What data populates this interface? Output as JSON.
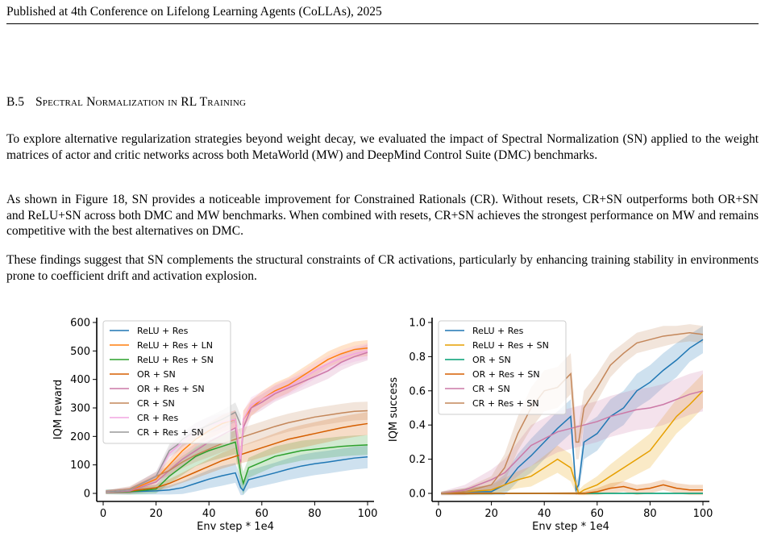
{
  "header": {
    "text": "Published at 4th Conference on Lifelong Learning Agents (CoLLAs), 2025"
  },
  "section": {
    "number": "B.5",
    "title": "Spectral Normalization in RL Training"
  },
  "paragraphs": [
    "To explore alternative regularization strategies beyond weight decay, we evaluated the impact of Spectral Normalization (SN) applied to the weight matrices of actor and critic networks across both MetaWorld (MW) and DeepMind Control Suite (DMC) benchmarks.",
    "As shown in Figure 18, SN provides a noticeable improvement for Constrained Rationals (CR). Without resets, CR+SN outperforms both OR+SN and ReLU+SN across both DMC and MW benchmarks. When combined with resets, CR+SN achieves the strongest performance on MW and remains competitive with the best alternatives on DMC.",
    "These findings suggest that SN complements the structural constraints of CR activations, particularly by enhancing training stability in environments prone to coefficient drift and activation explosion."
  ],
  "chart_data": [
    {
      "type": "line",
      "xlabel": "Env step * 1e4",
      "ylabel": "IQM reward",
      "xlim": [
        0,
        100
      ],
      "ylim": [
        0,
        600
      ],
      "xticks": [
        0,
        20,
        40,
        60,
        80,
        100
      ],
      "yticks": [
        0,
        100,
        200,
        300,
        400,
        500,
        600
      ],
      "legend_placement": "top-left",
      "grid": false,
      "series": [
        {
          "name": "ReLU + Res",
          "color": "#1f77b4",
          "x": [
            1,
            10,
            20,
            25,
            30,
            35,
            40,
            45,
            50,
            52,
            53,
            55,
            60,
            65,
            70,
            75,
            80,
            85,
            90,
            95,
            100
          ],
          "y": [
            5,
            6,
            9,
            12,
            20,
            35,
            50,
            62,
            72,
            20,
            10,
            48,
            60,
            72,
            85,
            96,
            104,
            110,
            117,
            124,
            128
          ],
          "band": [
            8,
            10,
            13,
            16,
            22,
            28,
            32,
            35,
            35,
            35,
            25,
            32,
            34,
            36,
            38,
            40,
            40,
            40,
            40,
            40,
            40
          ]
        },
        {
          "name": "ReLU + Res + LN",
          "color": "#ff7f0e",
          "x": [
            1,
            10,
            20,
            25,
            30,
            35,
            40,
            45,
            50,
            52,
            53,
            56,
            60,
            65,
            70,
            75,
            80,
            85,
            90,
            95,
            100
          ],
          "y": [
            5,
            10,
            50,
            100,
            150,
            190,
            220,
            245,
            260,
            110,
            260,
            300,
            330,
            360,
            380,
            410,
            440,
            470,
            490,
            505,
            510
          ],
          "band": [
            6,
            10,
            16,
            20,
            24,
            26,
            28,
            30,
            32,
            35,
            30,
            28,
            28,
            28,
            28,
            28,
            28,
            28,
            28,
            28,
            28
          ]
        },
        {
          "name": "ReLU + Res + SN",
          "color": "#2ca02c",
          "x": [
            1,
            10,
            20,
            25,
            30,
            35,
            40,
            45,
            50,
            52,
            53,
            55,
            60,
            65,
            70,
            75,
            80,
            85,
            90,
            95,
            100
          ],
          "y": [
            5,
            6,
            15,
            60,
            95,
            130,
            150,
            165,
            180,
            70,
            35,
            90,
            110,
            130,
            140,
            150,
            155,
            160,
            165,
            168,
            170
          ],
          "band": [
            8,
            10,
            15,
            25,
            30,
            35,
            38,
            40,
            42,
            45,
            40,
            35,
            35,
            35,
            35,
            35,
            35,
            35,
            35,
            35,
            35
          ]
        },
        {
          "name": "OR + SN",
          "color": "#d55e00",
          "x": [
            1,
            10,
            20,
            25,
            30,
            35,
            40,
            45,
            50,
            55,
            60,
            65,
            70,
            75,
            80,
            85,
            90,
            95,
            100
          ],
          "y": [
            5,
            8,
            20,
            35,
            55,
            75,
            95,
            115,
            130,
            145,
            160,
            175,
            190,
            200,
            210,
            220,
            230,
            238,
            245
          ],
          "band": [
            6,
            8,
            12,
            15,
            18,
            22,
            25,
            28,
            30,
            32,
            34,
            36,
            38,
            40,
            40,
            40,
            40,
            40,
            40
          ]
        },
        {
          "name": "OR + Res + SN",
          "color": "#cc79a7",
          "x": [
            1,
            10,
            20,
            25,
            30,
            35,
            40,
            45,
            50,
            52,
            53,
            56,
            60,
            65,
            70,
            75,
            80,
            85,
            90,
            95,
            100
          ],
          "y": [
            5,
            8,
            40,
            80,
            120,
            150,
            180,
            205,
            230,
            110,
            230,
            300,
            320,
            350,
            370,
            390,
            410,
            430,
            460,
            480,
            495
          ],
          "band": [
            6,
            10,
            16,
            20,
            24,
            26,
            28,
            30,
            32,
            35,
            30,
            28,
            28,
            28,
            28,
            28,
            28,
            28,
            28,
            28,
            28
          ]
        },
        {
          "name": "CR + SN",
          "color": "#c4875a",
          "x": [
            1,
            10,
            20,
            25,
            30,
            35,
            40,
            45,
            50,
            55,
            60,
            65,
            70,
            75,
            80,
            85,
            90,
            95,
            100
          ],
          "y": [
            5,
            15,
            60,
            80,
            110,
            135,
            155,
            175,
            190,
            205,
            220,
            235,
            248,
            258,
            268,
            275,
            282,
            288,
            290
          ],
          "band": [
            6,
            10,
            15,
            18,
            22,
            25,
            28,
            30,
            32,
            32,
            32,
            32,
            32,
            32,
            32,
            32,
            32,
            32,
            32
          ]
        },
        {
          "name": "CR + Res",
          "color": "#f2a6e0",
          "x": [
            1,
            10,
            20,
            25,
            30,
            35,
            40,
            45,
            50,
            52,
            53,
            56,
            60,
            65,
            70,
            75,
            80,
            85,
            90,
            95,
            100
          ],
          "y": [
            5,
            12,
            60,
            140,
            180,
            220,
            240,
            250,
            260,
            120,
            260,
            310,
            330,
            355,
            375,
            400,
            430,
            455,
            475,
            490,
            500
          ],
          "band": [
            6,
            10,
            16,
            20,
            24,
            26,
            28,
            30,
            32,
            35,
            30,
            28,
            28,
            28,
            28,
            28,
            28,
            28,
            28,
            28,
            28
          ]
        },
        {
          "name": "CR + Res + SN",
          "color": "#999999",
          "x": [
            1,
            10,
            20,
            25,
            28,
            30,
            35,
            40,
            45,
            50,
            52
          ],
          "y": [
            5,
            12,
            60,
            150,
            170,
            190,
            220,
            240,
            260,
            285,
            240
          ],
          "band": [
            6,
            10,
            16,
            22,
            24,
            26,
            28,
            30,
            32,
            34,
            34
          ]
        }
      ]
    },
    {
      "type": "line",
      "xlabel": "Env step * 1e4",
      "ylabel": "IQM success",
      "xlim": [
        0,
        100
      ],
      "ylim": [
        0,
        1.0
      ],
      "xticks": [
        0,
        20,
        40,
        60,
        80,
        100
      ],
      "yticks": [
        0.0,
        0.2,
        0.4,
        0.6,
        0.8,
        1.0
      ],
      "legend_placement": "top-left",
      "grid": false,
      "series": [
        {
          "name": "ReLU + Res",
          "color": "#1f77b4",
          "x": [
            1,
            10,
            20,
            25,
            30,
            35,
            40,
            45,
            50,
            52,
            53,
            55,
            60,
            65,
            70,
            75,
            80,
            85,
            90,
            95,
            100
          ],
          "y": [
            0,
            0.01,
            0.01,
            0.05,
            0.15,
            0.22,
            0.3,
            0.38,
            0.45,
            0.02,
            0.05,
            0.3,
            0.35,
            0.45,
            0.5,
            0.6,
            0.65,
            0.72,
            0.78,
            0.85,
            0.9
          ],
          "band": [
            0.01,
            0.02,
            0.04,
            0.06,
            0.08,
            0.1,
            0.1,
            0.1,
            0.1,
            0.05,
            0.05,
            0.1,
            0.1,
            0.1,
            0.1,
            0.1,
            0.1,
            0.1,
            0.1,
            0.08,
            0.08
          ]
        },
        {
          "name": "ReLU + Res + SN",
          "color": "#e69f00",
          "x": [
            1,
            10,
            20,
            25,
            30,
            35,
            40,
            45,
            50,
            52,
            53,
            55,
            60,
            65,
            70,
            75,
            80,
            85,
            90,
            95,
            100
          ],
          "y": [
            0,
            0.01,
            0.02,
            0.05,
            0.08,
            0.1,
            0.15,
            0.2,
            0.15,
            0.05,
            0.0,
            0.02,
            0.05,
            0.1,
            0.15,
            0.2,
            0.25,
            0.35,
            0.45,
            0.52,
            0.6
          ],
          "band": [
            0.01,
            0.02,
            0.03,
            0.04,
            0.05,
            0.06,
            0.07,
            0.08,
            0.08,
            0.05,
            0.02,
            0.03,
            0.05,
            0.07,
            0.08,
            0.09,
            0.1,
            0.1,
            0.1,
            0.1,
            0.1
          ]
        },
        {
          "name": "OR + SN",
          "color": "#009e73",
          "x": [
            1,
            20,
            40,
            60,
            80,
            100
          ],
          "y": [
            0,
            0,
            0,
            0,
            0,
            0
          ],
          "band": [
            0.005,
            0.005,
            0.005,
            0.005,
            0.005,
            0.005
          ]
        },
        {
          "name": "OR + Res + SN",
          "color": "#d55e00",
          "x": [
            1,
            20,
            40,
            55,
            60,
            65,
            70,
            75,
            80,
            85,
            90,
            95,
            100
          ],
          "y": [
            0,
            0,
            0,
            0,
            0.01,
            0.03,
            0.04,
            0.02,
            0.03,
            0.05,
            0.03,
            0.02,
            0.02
          ],
          "band": [
            0.005,
            0.005,
            0.005,
            0.01,
            0.02,
            0.03,
            0.03,
            0.03,
            0.03,
            0.03,
            0.03,
            0.03,
            0.03
          ]
        },
        {
          "name": "CR + SN",
          "color": "#cc79a7",
          "x": [
            1,
            10,
            20,
            25,
            30,
            35,
            40,
            45,
            50,
            55,
            60,
            65,
            70,
            75,
            80,
            85,
            90,
            95,
            100
          ],
          "y": [
            0,
            0.02,
            0.08,
            0.12,
            0.2,
            0.28,
            0.32,
            0.36,
            0.38,
            0.4,
            0.42,
            0.45,
            0.47,
            0.49,
            0.5,
            0.52,
            0.55,
            0.58,
            0.6
          ],
          "band": [
            0.01,
            0.03,
            0.06,
            0.08,
            0.1,
            0.12,
            0.12,
            0.12,
            0.12,
            0.12,
            0.12,
            0.12,
            0.12,
            0.12,
            0.12,
            0.12,
            0.12,
            0.12,
            0.12
          ]
        },
        {
          "name": "CR + Res + SN",
          "color": "#c4875a",
          "x": [
            1,
            10,
            20,
            25,
            30,
            35,
            40,
            45,
            50,
            52,
            53,
            55,
            60,
            65,
            70,
            75,
            80,
            85,
            90,
            95,
            100
          ],
          "y": [
            0,
            0.01,
            0.05,
            0.15,
            0.35,
            0.5,
            0.6,
            0.62,
            0.7,
            0.3,
            0.3,
            0.5,
            0.62,
            0.75,
            0.82,
            0.88,
            0.9,
            0.92,
            0.93,
            0.94,
            0.93
          ],
          "band": [
            0.01,
            0.02,
            0.05,
            0.08,
            0.1,
            0.12,
            0.12,
            0.12,
            0.12,
            0.1,
            0.1,
            0.1,
            0.08,
            0.07,
            0.06,
            0.06,
            0.06,
            0.06,
            0.05,
            0.05,
            0.05
          ]
        }
      ]
    }
  ]
}
